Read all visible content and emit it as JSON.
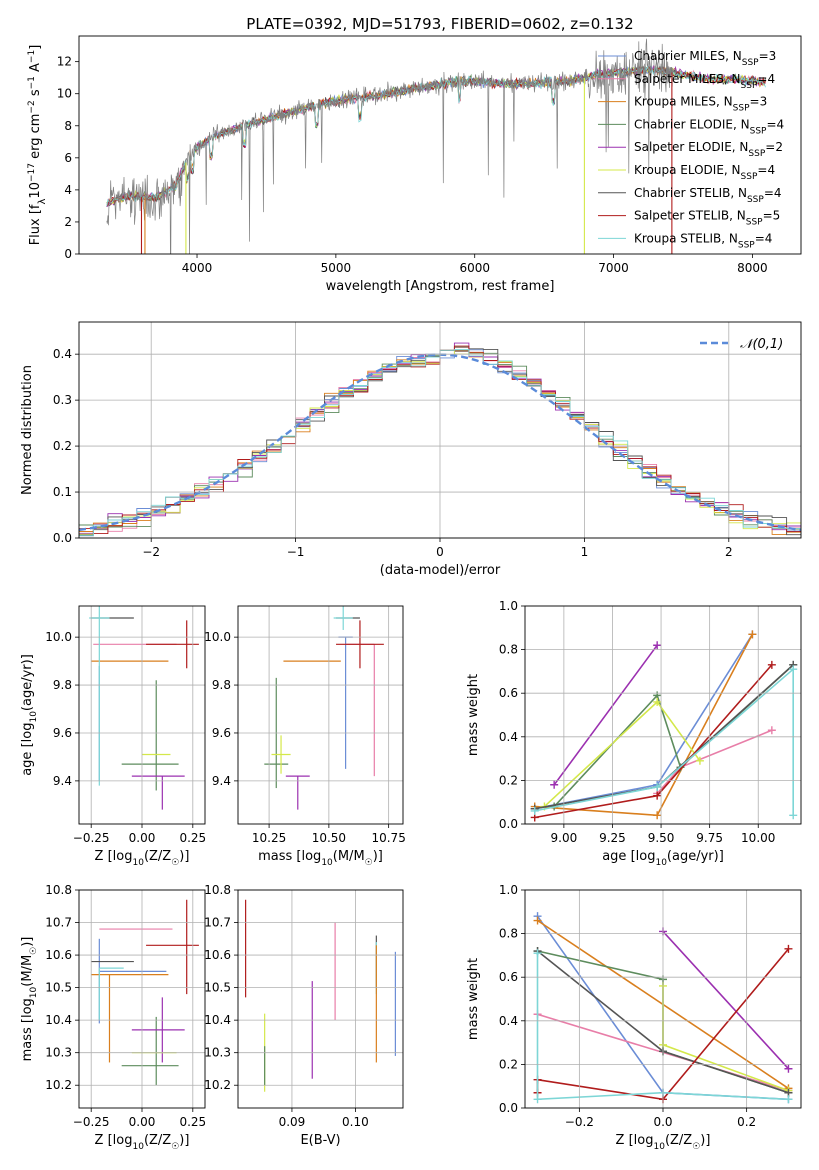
{
  "figure": {
    "title": "PLATE=0392, MJD=51793, FIBERID=0602, z=0.132"
  },
  "chart_data": [
    {
      "id": "spectrum",
      "type": "line",
      "xlabel": "wavelength [Angstrom, rest frame]",
      "ylabel": "Flux [f_λ10^-17 erg cm^-2 s^-1 A^-1]",
      "xlim": [
        3150,
        8350
      ],
      "ylim": [
        0,
        13.6
      ],
      "xticks": [
        4000,
        5000,
        6000,
        7000,
        8000
      ],
      "yticks": [
        0,
        2,
        4,
        6,
        8,
        10,
        12
      ],
      "grid": false,
      "legend_position": "top-right",
      "data_series": {
        "name": "data",
        "color": "#808080"
      },
      "legend": [
        {
          "label": "Chabrier MILES, N_SSP=3",
          "color": "#6b8dd6"
        },
        {
          "label": "Salpeter MILES, N_SSP=4",
          "color": "#e87ea8"
        },
        {
          "label": "Kroupa MILES, N_SSP=3",
          "color": "#d97f1e"
        },
        {
          "label": "Chabrier ELODIE, N_SSP=4",
          "color": "#5d8c5d"
        },
        {
          "label": "Salpeter ELODIE, N_SSP=2",
          "color": "#9b30b0"
        },
        {
          "label": "Kroupa ELODIE, N_SSP=4",
          "color": "#d4e84a"
        },
        {
          "label": "Chabrier STELIB, N_SSP=4",
          "color": "#555555"
        },
        {
          "label": "Salpeter STELIB, N_SSP=5",
          "color": "#b01c1c"
        },
        {
          "label": "Kroupa STELIB, N_SSP=4",
          "color": "#7dd6d6"
        }
      ],
      "continuum_points": [
        [
          3350,
          3.2
        ],
        [
          3500,
          3.6
        ],
        [
          3700,
          3.5
        ],
        [
          3850,
          4.3
        ],
        [
          3950,
          6.3
        ],
        [
          4100,
          7.3
        ],
        [
          4300,
          7.9
        ],
        [
          4500,
          8.4
        ],
        [
          4700,
          8.9
        ],
        [
          4900,
          9.4
        ],
        [
          5100,
          9.7
        ],
        [
          5300,
          9.9
        ],
        [
          5500,
          10.2
        ],
        [
          5700,
          10.5
        ],
        [
          5900,
          10.8
        ],
        [
          6100,
          10.7
        ],
        [
          6300,
          10.6
        ],
        [
          6500,
          10.7
        ],
        [
          6700,
          10.8
        ],
        [
          6900,
          11.2
        ],
        [
          7100,
          11.4
        ],
        [
          7300,
          11.5
        ],
        [
          7500,
          11.2
        ],
        [
          7700,
          10.9
        ],
        [
          7900,
          10.9
        ],
        [
          8100,
          10.7
        ]
      ]
    },
    {
      "id": "residuals",
      "type": "line",
      "xlabel": "(data-model)/error",
      "ylabel": "Normed distribution",
      "xlim": [
        -2.5,
        2.5
      ],
      "ylim": [
        0,
        0.47
      ],
      "xticks": [
        -2,
        -1,
        0,
        1,
        2
      ],
      "yticks": [
        0.0,
        0.1,
        0.2,
        0.3,
        0.4
      ],
      "grid": true,
      "legend_position": "top-right",
      "reference_curve": {
        "label": "𝒩(0,1)",
        "color": "#5b8bd9",
        "mean": 0,
        "sigma": 1
      }
    },
    {
      "id": "age_vs_Z",
      "type": "scatter",
      "xlabel": "Z [log10(Z/Z☉)]",
      "ylabel": "age [log10(age/yr)]",
      "xlim": [
        -0.31,
        0.31
      ],
      "ylim": [
        9.22,
        10.13
      ],
      "xticks": [
        -0.25,
        0.0,
        0.25
      ],
      "yticks": [
        9.4,
        9.6,
        9.8,
        10.0
      ],
      "grid": true,
      "points": [
        {
          "series": "Chabrier MILES",
          "x": -0.21,
          "y": 9.58,
          "xerr": 0.0,
          "yerr": [
            0.18,
            0.3
          ]
        },
        {
          "series": "Salpeter MILES",
          "x": -0.19,
          "y": 9.97,
          "xerr": [
            0.05,
            0.36
          ],
          "yerr": 0.0
        },
        {
          "series": "Kroupa MILES",
          "x": -0.16,
          "y": 9.9,
          "xerr": [
            0.09,
            0.29
          ],
          "yerr": 0.0
        },
        {
          "series": "Chabrier ELODIE",
          "x": 0.07,
          "y": 9.47,
          "xerr": [
            0.17,
            0.11
          ],
          "yerr": [
            0.11,
            0.35
          ]
        },
        {
          "series": "Salpeter ELODIE",
          "x": 0.1,
          "y": 9.42,
          "xerr": [
            0.15,
            0.11
          ],
          "yerr": [
            0.14,
            0.0
          ]
        },
        {
          "series": "Kroupa ELODIE",
          "x": 0.07,
          "y": 9.51,
          "xerr": 0.07,
          "yerr": 0.0
        },
        {
          "series": "Chabrier STELIB",
          "x": -0.13,
          "y": 10.08,
          "xerr": [
            0.12,
            0.09
          ],
          "yerr": 0.0
        },
        {
          "series": "Salpeter STELIB",
          "x": 0.22,
          "y": 9.97,
          "xerr": [
            0.2,
            0.06
          ],
          "yerr": 0.1
        },
        {
          "series": "Kroupa STELIB",
          "x": -0.21,
          "y": 10.08,
          "xerr": 0.05,
          "yerr": [
            0.7,
            0.05
          ]
        }
      ]
    },
    {
      "id": "age_vs_mass",
      "type": "scatter",
      "xlabel": "mass [log10(M/M☉)]",
      "ylabel": "",
      "xlim": [
        10.12,
        10.81
      ],
      "ylim": [
        9.22,
        10.13
      ],
      "xticks": [
        10.25,
        10.5,
        10.75
      ],
      "yticks": [
        9.4,
        9.6,
        9.8,
        10.0
      ],
      "grid": true,
      "points": [
        {
          "series": "Chabrier MILES",
          "x": 10.57,
          "y": 10.0,
          "xerr": 0.03,
          "yerr": [
            0.55,
            0.0
          ]
        },
        {
          "series": "Salpeter MILES",
          "x": 10.69,
          "y": 9.97,
          "xerr": [
            0.12,
            0.0
          ],
          "yerr": [
            0.55,
            0.0
          ]
        },
        {
          "series": "Kroupa MILES",
          "x": 10.55,
          "y": 9.9,
          "xerr": [
            0.24,
            0.0
          ],
          "yerr": 0.0
        },
        {
          "series": "Chabrier ELODIE",
          "x": 10.28,
          "y": 9.47,
          "xerr": 0.05,
          "yerr": [
            0.1,
            0.36
          ]
        },
        {
          "series": "Salpeter ELODIE",
          "x": 10.37,
          "y": 9.42,
          "xerr": 0.05,
          "yerr": [
            0.14,
            0.0
          ]
        },
        {
          "series": "Kroupa ELODIE",
          "x": 10.3,
          "y": 9.51,
          "xerr": 0.04,
          "yerr": 0.08
        },
        {
          "series": "Chabrier STELIB",
          "x": 10.58,
          "y": 10.08,
          "xerr": 0.05,
          "yerr": 0.0
        },
        {
          "series": "Salpeter STELIB",
          "x": 10.63,
          "y": 9.97,
          "xerr": 0.1,
          "yerr": 0.1
        },
        {
          "series": "Kroupa STELIB",
          "x": 10.56,
          "y": 10.08,
          "xerr": 0.04,
          "yerr": 0.05
        }
      ]
    },
    {
      "id": "weight_vs_age",
      "type": "line",
      "xlabel": "age [log10(age/yr)]",
      "ylabel": "mass weight",
      "xlim": [
        8.8,
        10.22
      ],
      "ylim": [
        0,
        1.0
      ],
      "xticks": [
        9.0,
        9.25,
        9.5,
        9.75,
        10.0
      ],
      "yticks": [
        0.0,
        0.2,
        0.4,
        0.6,
        0.8,
        1.0
      ],
      "grid": true,
      "series": [
        {
          "name": "Chabrier MILES",
          "color": "#6b8dd6",
          "x": [
            8.85,
            9.48,
            9.97
          ],
          "y": [
            0.07,
            0.18,
            0.87
          ]
        },
        {
          "name": "Salpeter MILES",
          "color": "#e87ea8",
          "x": [
            9.48,
            9.6,
            10.07
          ],
          "y": [
            0.14,
            0.26,
            0.43
          ]
        },
        {
          "name": "Kroupa MILES",
          "color": "#d97f1e",
          "x": [
            8.85,
            9.48,
            9.97
          ],
          "y": [
            0.08,
            0.04,
            0.87
          ]
        },
        {
          "name": "Chabrier ELODIE",
          "color": "#5d8c5d",
          "x": [
            8.95,
            9.48,
            9.6,
            10.18
          ],
          "y": [
            0.08,
            0.59,
            0.26,
            0.73
          ]
        },
        {
          "name": "Salpeter ELODIE",
          "color": "#9b30b0",
          "x": [
            8.95,
            9.48
          ],
          "y": [
            0.18,
            0.82
          ]
        },
        {
          "name": "Kroupa ELODIE",
          "color": "#d4e84a",
          "x": [
            8.9,
            9.48,
            9.7
          ],
          "y": [
            0.08,
            0.56,
            0.29
          ]
        },
        {
          "name": "Chabrier STELIB",
          "color": "#555555",
          "x": [
            8.85,
            9.48,
            10.18
          ],
          "y": [
            0.07,
            0.17,
            0.73
          ]
        },
        {
          "name": "Salpeter STELIB",
          "color": "#b01c1c",
          "x": [
            8.85,
            9.48,
            10.07
          ],
          "y": [
            0.03,
            0.13,
            0.73
          ]
        },
        {
          "name": "Kroupa STELIB",
          "color": "#7dd6d6",
          "x": [
            8.85,
            9.48,
            10.18,
            10.18
          ],
          "y": [
            0.06,
            0.17,
            0.71,
            0.04
          ]
        }
      ]
    },
    {
      "id": "mass_vs_Z",
      "type": "scatter",
      "xlabel": "Z [log10(Z/Z☉)]",
      "ylabel": "mass [log10(M/M☉)]",
      "xlim": [
        -0.31,
        0.31
      ],
      "ylim": [
        10.13,
        10.8
      ],
      "xticks": [
        -0.25,
        0.0,
        0.25
      ],
      "yticks": [
        10.2,
        10.3,
        10.4,
        10.5,
        10.6,
        10.7,
        10.8
      ],
      "grid": true,
      "points": [
        {
          "series": "Chabrier MILES",
          "x": -0.21,
          "y": 10.55,
          "xerr": [
            0.0,
            0.33
          ],
          "yerr": [
            0.16,
            0.1
          ]
        },
        {
          "series": "Salpeter MILES",
          "x": -0.21,
          "y": 10.68,
          "xerr": [
            0.0,
            0.36
          ],
          "yerr": 0.0
        },
        {
          "series": "Kroupa MILES",
          "x": -0.16,
          "y": 10.54,
          "xerr": [
            0.09,
            0.29
          ],
          "yerr": [
            0.27,
            0.0
          ]
        },
        {
          "series": "Chabrier ELODIE",
          "x": 0.07,
          "y": 10.26,
          "xerr": [
            0.17,
            0.11
          ],
          "yerr": [
            0.06,
            0.15
          ]
        },
        {
          "series": "Salpeter ELODIE",
          "x": 0.1,
          "y": 10.37,
          "xerr": [
            0.15,
            0.11
          ],
          "yerr": 0.1
        },
        {
          "series": "Kroupa ELODIE",
          "x": 0.07,
          "y": 10.3,
          "xerr": [
            0.12,
            0.1
          ],
          "yerr": 0.0
        },
        {
          "series": "Chabrier STELIB",
          "x": -0.13,
          "y": 10.58,
          "xerr": [
            0.12,
            0.09
          ],
          "yerr": 0.0
        },
        {
          "series": "Salpeter STELIB",
          "x": 0.22,
          "y": 10.63,
          "xerr": [
            0.2,
            0.06
          ],
          "yerr": [
            0.15,
            0.14
          ]
        },
        {
          "series": "Kroupa STELIB",
          "x": -0.21,
          "y": 10.56,
          "xerr": [
            0.0,
            0.12
          ],
          "yerr": [
            0.16,
            0.0
          ]
        }
      ]
    },
    {
      "id": "mass_vs_ebv",
      "type": "scatter",
      "xlabel": "E(B-V)",
      "ylabel": "",
      "xlim": [
        0.0815,
        0.1075
      ],
      "ylim": [
        10.13,
        10.8
      ],
      "xticks": [
        0.09,
        0.1
      ],
      "yticks": [
        10.2,
        10.3,
        10.4,
        10.5,
        10.6,
        10.7,
        10.8
      ],
      "grid": true,
      "points": [
        {
          "series": "Salpeter STELIB",
          "x": 0.0827,
          "y": 10.62,
          "xerr": 0.0,
          "yerr": 0.15
        },
        {
          "series": "Kroupa ELODIE",
          "x": 0.0857,
          "y": 10.3,
          "xerr": 0.0,
          "yerr": 0.12
        },
        {
          "series": "Chabrier ELODIE",
          "x": 0.0857,
          "y": 10.26,
          "xerr": 0.0,
          "yerr": 0.06
        },
        {
          "series": "Salpeter ELODIE",
          "x": 0.0932,
          "y": 10.37,
          "xerr": 0.0,
          "yerr": 0.15
        },
        {
          "series": "Salpeter MILES",
          "x": 0.0968,
          "y": 10.55,
          "xerr": 0.0,
          "yerr": 0.15
        },
        {
          "series": "Chabrier STELIB",
          "x": 0.1033,
          "y": 10.58,
          "xerr": 0.0,
          "yerr": 0.08
        },
        {
          "series": "Kroupa STELIB",
          "x": 0.1033,
          "y": 10.56,
          "xerr": 0.0,
          "yerr": 0.08
        },
        {
          "series": "Kroupa MILES",
          "x": 0.1033,
          "y": 10.45,
          "xerr": 0.0,
          "yerr": 0.18
        },
        {
          "series": "Chabrier MILES",
          "x": 0.1063,
          "y": 10.45,
          "xerr": 0.0,
          "yerr": 0.16
        }
      ]
    },
    {
      "id": "weight_vs_Z",
      "type": "line",
      "xlabel": "Z [log10(Z/Z☉)]",
      "ylabel": "mass weight",
      "xlim": [
        -0.33,
        0.33
      ],
      "ylim": [
        0,
        1.0
      ],
      "xticks": [
        -0.2,
        0.0,
        0.2
      ],
      "yticks": [
        0.0,
        0.2,
        0.4,
        0.6,
        0.8,
        1.0
      ],
      "grid": true,
      "series": [
        {
          "name": "Chabrier MILES",
          "color": "#6b8dd6",
          "x": [
            -0.3,
            0.0,
            0.3
          ],
          "y": [
            0.88,
            0.07,
            0.04
          ]
        },
        {
          "name": "Salpeter MILES",
          "color": "#e87ea8",
          "x": [
            -0.3,
            0.3
          ],
          "y": [
            0.43,
            0.08
          ]
        },
        {
          "name": "Kroupa MILES",
          "color": "#d97f1e",
          "x": [
            -0.3,
            0.3
          ],
          "y": [
            0.86,
            0.09
          ]
        },
        {
          "name": "Chabrier ELODIE",
          "color": "#5d8c5d",
          "x": [
            -0.3,
            0.0,
            0.0,
            0.3
          ],
          "y": [
            0.72,
            0.59,
            0.26,
            0.07
          ]
        },
        {
          "name": "Salpeter ELODIE",
          "color": "#9b30b0",
          "x": [
            0.0,
            0.3
          ],
          "y": [
            0.81,
            0.18
          ]
        },
        {
          "name": "Kroupa ELODIE",
          "color": "#d4e84a",
          "x": [
            0.0,
            0.0,
            0.3
          ],
          "y": [
            0.56,
            0.29,
            0.08
          ]
        },
        {
          "name": "Chabrier STELIB",
          "color": "#555555",
          "x": [
            -0.3,
            0.0,
            0.3
          ],
          "y": [
            0.72,
            0.26,
            0.07
          ]
        },
        {
          "name": "Salpeter STELIB",
          "color": "#b01c1c",
          "x": [
            -0.3,
            -0.3,
            0.0,
            0.3
          ],
          "y": [
            0.07,
            0.13,
            0.04,
            0.73
          ]
        },
        {
          "name": "Kroupa STELIB",
          "color": "#7dd6d6",
          "x": [
            -0.3,
            -0.3,
            0.0,
            0.3
          ],
          "y": [
            0.71,
            0.04,
            0.07,
            0.04
          ]
        }
      ]
    }
  ]
}
